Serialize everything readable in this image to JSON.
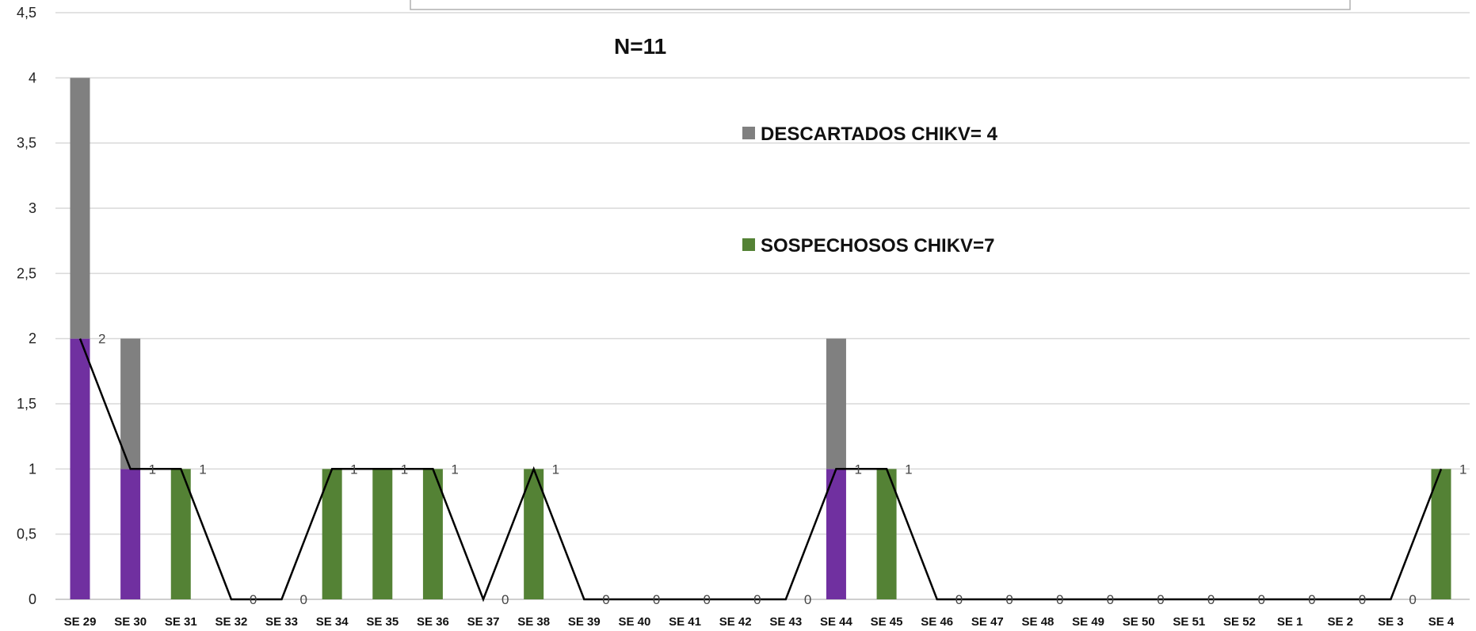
{
  "chart_data": {
    "type": "bar",
    "stacked": true,
    "annotation": "N=11",
    "ylim": [
      0,
      4.5
    ],
    "yticks": [
      "0",
      "0,5",
      "1",
      "1,5",
      "2",
      "2,5",
      "3",
      "3,5",
      "4",
      "4,5"
    ],
    "ytick_values": [
      0,
      0.5,
      1,
      1.5,
      2,
      2.5,
      3,
      3.5,
      4,
      4.5
    ],
    "grid": true,
    "categories": [
      "SE 29",
      "SE 30",
      "SE 31",
      "SE 32",
      "SE 33",
      "SE 34",
      "SE 35",
      "SE 36",
      "SE 37",
      "SE 38",
      "SE 39",
      "SE 40",
      "SE 41",
      "SE 42",
      "SE 43",
      "SE 44",
      "SE 45",
      "SE 46",
      "SE 47",
      "SE 48",
      "SE 49",
      "SE 50",
      "SE 51",
      "SE 52",
      "SE 1",
      "SE 2",
      "SE 3",
      "SE 4"
    ],
    "series": [
      {
        "key": "purple",
        "color": "#7030A0",
        "values": [
          2,
          1,
          0,
          0,
          0,
          0,
          0,
          0,
          0,
          0,
          0,
          0,
          0,
          0,
          0,
          1,
          0,
          0,
          0,
          0,
          0,
          0,
          0,
          0,
          0,
          0,
          0,
          0
        ]
      },
      {
        "key": "green",
        "name": "SOSPECHOSOS CHIKV=7",
        "color": "#548235",
        "values": [
          0,
          0,
          1,
          0,
          0,
          1,
          1,
          1,
          0,
          1,
          0,
          0,
          0,
          0,
          0,
          0,
          1,
          0,
          0,
          0,
          0,
          0,
          0,
          0,
          0,
          0,
          0,
          1
        ]
      },
      {
        "key": "gray",
        "name": "DESCARTADOS CHIKV= 4",
        "color": "#808080",
        "values": [
          2,
          1,
          0,
          0,
          0,
          0,
          0,
          0,
          0,
          0,
          0,
          0,
          0,
          0,
          0,
          1,
          0,
          0,
          0,
          0,
          0,
          0,
          0,
          0,
          0,
          0,
          0,
          0
        ]
      }
    ],
    "line": {
      "color": "#000000",
      "values": [
        2,
        1,
        1,
        0,
        0,
        1,
        1,
        1,
        0,
        1,
        0,
        0,
        0,
        0,
        0,
        1,
        1,
        0,
        0,
        0,
        0,
        0,
        0,
        0,
        0,
        0,
        0,
        1
      ],
      "labels": [
        "2",
        "1",
        "1",
        "0",
        "0",
        "1",
        "1",
        "1",
        "0",
        "1",
        "0",
        "0",
        "0",
        "0",
        "0",
        "1",
        "1",
        "0",
        "0",
        "0",
        "0",
        "0",
        "0",
        "0",
        "0",
        "0",
        "0",
        "1"
      ]
    },
    "legend": [
      {
        "label": "DESCARTADOS CHIKV= 4",
        "color": "#808080"
      },
      {
        "label": "SOSPECHOSOS CHIKV=7",
        "color": "#548235"
      }
    ],
    "legend_placement": "top-center"
  }
}
